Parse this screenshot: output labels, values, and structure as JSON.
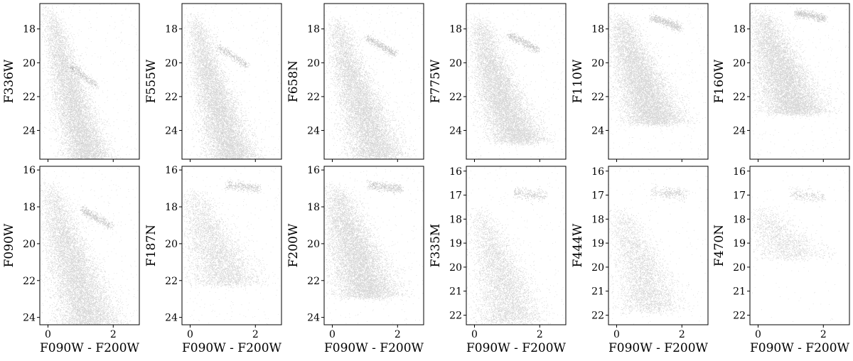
{
  "figure": {
    "shared_xlabel": "F090W - F200W",
    "background": "#ffffff",
    "point_color": "#000000"
  },
  "chart_data": [
    {
      "type": "scatter",
      "row": 0,
      "ylabel": "F336W",
      "xlabel": "",
      "xlim": [
        -0.25,
        2.8
      ],
      "ylim": [
        25.7,
        16.5
      ],
      "xticks": [
        0,
        2
      ],
      "xtick_labels": [
        "",
        ""
      ],
      "yticks": [
        18,
        20,
        22,
        24
      ],
      "ytick_labels": [
        "18",
        "20",
        "22",
        "24"
      ],
      "cloud": {
        "seq": [
          [
            0.0,
            16.6
          ],
          [
            0.35,
            19.0
          ],
          [
            0.7,
            22.0
          ],
          [
            1.0,
            24.0
          ],
          [
            1.25,
            25.7
          ]
        ],
        "width": 0.3,
        "n_main": 8000,
        "clump": {
          "x": 1.1,
          "y": 20.8,
          "slope": 1.5,
          "len": 0.8
        },
        "n_clump": 250,
        "n_field": 350
      }
    },
    {
      "type": "scatter",
      "row": 0,
      "ylabel": "F555W",
      "xlabel": "",
      "xlim": [
        -0.25,
        2.8
      ],
      "ylim": [
        25.7,
        16.5
      ],
      "xticks": [
        0,
        2
      ],
      "xtick_labels": [
        "",
        ""
      ],
      "yticks": [
        18,
        20,
        22,
        24
      ],
      "ytick_labels": [
        "18",
        "20",
        "22",
        "24"
      ],
      "cloud": {
        "seq": [
          [
            0.1,
            17.0
          ],
          [
            0.45,
            19.8
          ],
          [
            0.8,
            22.3
          ],
          [
            1.1,
            24.3
          ],
          [
            1.35,
            25.7
          ]
        ],
        "width": 0.32,
        "n_main": 8000,
        "clump": {
          "x": 1.3,
          "y": 19.6,
          "slope": 1.3,
          "len": 0.9
        },
        "n_clump": 300,
        "n_field": 350
      }
    },
    {
      "type": "scatter",
      "row": 0,
      "ylabel": "F658N",
      "xlabel": "",
      "xlim": [
        -0.25,
        2.8
      ],
      "ylim": [
        25.7,
        16.5
      ],
      "xticks": [
        0,
        2
      ],
      "xtick_labels": [
        "",
        ""
      ],
      "yticks": [
        18,
        20,
        22,
        24
      ],
      "ytick_labels": [
        "18",
        "20",
        "22",
        "24"
      ],
      "cloud": {
        "seq": [
          [
            0.1,
            17.2
          ],
          [
            0.5,
            20.2
          ],
          [
            0.9,
            22.6
          ],
          [
            1.15,
            24.0
          ],
          [
            1.4,
            25.6
          ]
        ],
        "width": 0.36,
        "n_main": 8000,
        "clump": {
          "x": 1.5,
          "y": 19.0,
          "slope": 1.1,
          "len": 0.9
        },
        "n_clump": 400,
        "n_field": 350
      }
    },
    {
      "type": "scatter",
      "row": 0,
      "ylabel": "F775W",
      "xlabel": "",
      "xlim": [
        -0.25,
        2.8
      ],
      "ylim": [
        25.7,
        16.5
      ],
      "xticks": [
        0,
        2
      ],
      "xtick_labels": [
        "",
        ""
      ],
      "yticks": [
        18,
        20,
        22,
        24
      ],
      "ytick_labels": [
        "18",
        "20",
        "22",
        "24"
      ],
      "cloud": {
        "seq": [
          [
            0.1,
            17.2
          ],
          [
            0.5,
            20.0
          ],
          [
            0.9,
            22.6
          ],
          [
            1.2,
            23.8
          ],
          [
            1.4,
            24.7
          ]
        ],
        "width": 0.36,
        "n_main": 8000,
        "clump": {
          "x": 1.5,
          "y": 18.8,
          "slope": 1.0,
          "len": 0.9
        },
        "n_clump": 400,
        "n_field": 350
      }
    },
    {
      "type": "scatter",
      "row": 0,
      "ylabel": "F110W",
      "xlabel": "",
      "xlim": [
        -0.25,
        2.8
      ],
      "ylim": [
        25.7,
        16.5
      ],
      "xticks": [
        0,
        2
      ],
      "xtick_labels": [
        "",
        ""
      ],
      "yticks": [
        18,
        20,
        22,
        24
      ],
      "ytick_labels": [
        "18",
        "20",
        "22",
        "24"
      ],
      "cloud": {
        "seq": [
          [
            0.05,
            17.0
          ],
          [
            0.45,
            19.4
          ],
          [
            0.8,
            21.4
          ],
          [
            1.05,
            22.6
          ],
          [
            1.25,
            23.6
          ]
        ],
        "width": 0.4,
        "n_main": 8000,
        "clump": {
          "x": 1.5,
          "y": 17.6,
          "slope": 0.7,
          "len": 0.9
        },
        "n_clump": 450,
        "n_field": 350
      }
    },
    {
      "type": "scatter",
      "row": 0,
      "ylabel": "F160W",
      "xlabel": "",
      "xlim": [
        -0.25,
        2.8
      ],
      "ylim": [
        25.7,
        16.5
      ],
      "xticks": [
        0,
        2
      ],
      "xtick_labels": [
        "",
        ""
      ],
      "yticks": [
        18,
        20,
        22,
        24
      ],
      "ytick_labels": [
        "18",
        "20",
        "22",
        "24"
      ],
      "cloud": {
        "seq": [
          [
            0.05,
            16.8
          ],
          [
            0.45,
            19.0
          ],
          [
            0.8,
            21.0
          ],
          [
            1.05,
            22.2
          ],
          [
            1.2,
            23.0
          ]
        ],
        "width": 0.42,
        "n_main": 8000,
        "clump": {
          "x": 1.6,
          "y": 17.2,
          "slope": 0.4,
          "len": 0.9
        },
        "n_clump": 450,
        "n_field": 350
      }
    },
    {
      "type": "scatter",
      "row": 1,
      "ylabel": "F090W",
      "xlabel": "F090W - F200W",
      "xlim": [
        -0.25,
        2.8
      ],
      "ylim": [
        24.4,
        15.8
      ],
      "xticks": [
        0,
        2
      ],
      "xtick_labels": [
        "0",
        "2"
      ],
      "yticks": [
        16,
        18,
        20,
        22,
        24
      ],
      "ytick_labels": [
        "16",
        "18",
        "20",
        "22",
        "24"
      ],
      "cloud": {
        "seq": [
          [
            0.0,
            16.6
          ],
          [
            0.4,
            19.0
          ],
          [
            0.8,
            21.5
          ],
          [
            1.1,
            23.0
          ],
          [
            1.3,
            24.4
          ]
        ],
        "width": 0.4,
        "n_main": 8000,
        "clump": {
          "x": 1.5,
          "y": 18.6,
          "slope": 1.0,
          "len": 0.9
        },
        "n_clump": 400,
        "n_field": 350
      }
    },
    {
      "type": "scatter",
      "row": 1,
      "ylabel": "F187N",
      "xlabel": "F090W - F200W",
      "xlim": [
        -0.25,
        2.8
      ],
      "ylim": [
        24.4,
        15.8
      ],
      "xticks": [
        0,
        2
      ],
      "xtick_labels": [
        "0",
        "2"
      ],
      "yticks": [
        16,
        18,
        20,
        22,
        24
      ],
      "ytick_labels": [
        "16",
        "18",
        "20",
        "22",
        "24"
      ],
      "cloud": {
        "seq": [
          [
            0.05,
            17.0
          ],
          [
            0.45,
            18.9
          ],
          [
            0.8,
            20.4
          ],
          [
            1.0,
            21.3
          ],
          [
            1.15,
            22.2
          ]
        ],
        "width": 0.45,
        "n_main": 4000,
        "clump": {
          "x": 1.6,
          "y": 16.9,
          "slope": 0.2,
          "len": 1.0
        },
        "n_clump": 300,
        "n_field": 250
      }
    },
    {
      "type": "scatter",
      "row": 1,
      "ylabel": "F200W",
      "xlabel": "F090W - F200W",
      "xlim": [
        -0.25,
        2.8
      ],
      "ylim": [
        24.4,
        15.8
      ],
      "xticks": [
        0,
        2
      ],
      "xtick_labels": [
        "0",
        "2"
      ],
      "yticks": [
        16,
        18,
        20,
        22,
        24
      ],
      "ytick_labels": [
        "16",
        "18",
        "20",
        "22",
        "24"
      ],
      "cloud": {
        "seq": [
          [
            0.05,
            16.7
          ],
          [
            0.45,
            19.0
          ],
          [
            0.8,
            21.0
          ],
          [
            1.05,
            22.3
          ],
          [
            1.15,
            22.9
          ]
        ],
        "width": 0.42,
        "n_main": 8000,
        "clump": {
          "x": 1.6,
          "y": 16.9,
          "slope": 0.2,
          "len": 1.0
        },
        "n_clump": 400,
        "n_field": 350
      }
    },
    {
      "type": "scatter",
      "row": 1,
      "ylabel": "F335M",
      "xlabel": "F090W - F200W",
      "xlim": [
        -0.25,
        2.8
      ],
      "ylim": [
        22.4,
        15.8
      ],
      "xticks": [
        0,
        2
      ],
      "xtick_labels": [
        "0",
        "2"
      ],
      "yticks": [
        16,
        17,
        18,
        19,
        20,
        21,
        22
      ],
      "ytick_labels": [
        "16",
        "17",
        "18",
        "19",
        "20",
        "21",
        "22"
      ],
      "cloud": {
        "seq": [
          [
            0.05,
            17.5
          ],
          [
            0.45,
            18.8
          ],
          [
            0.8,
            20.2
          ],
          [
            1.0,
            21.2
          ],
          [
            1.1,
            22.3
          ]
        ],
        "width": 0.42,
        "n_main": 4500,
        "clump": {
          "x": 1.7,
          "y": 16.95,
          "slope": 0.1,
          "len": 1.0
        },
        "n_clump": 250,
        "n_field": 300
      }
    },
    {
      "type": "scatter",
      "row": 1,
      "ylabel": "F444W",
      "xlabel": "F090W - F200W",
      "xlim": [
        -0.25,
        2.8
      ],
      "ylim": [
        22.4,
        15.8
      ],
      "xticks": [
        0,
        2
      ],
      "xtick_labels": [
        "0",
        "2"
      ],
      "yticks": [
        16,
        17,
        18,
        19,
        20,
        21,
        22
      ],
      "ytick_labels": [
        "16",
        "17",
        "18",
        "19",
        "20",
        "21",
        "22"
      ],
      "cloud": {
        "seq": [
          [
            0.05,
            17.5
          ],
          [
            0.45,
            18.8
          ],
          [
            0.8,
            20.2
          ],
          [
            0.95,
            21.0
          ],
          [
            1.05,
            21.8
          ]
        ],
        "width": 0.42,
        "n_main": 3500,
        "clump": {
          "x": 1.6,
          "y": 16.9,
          "slope": 0.1,
          "len": 1.0
        },
        "n_clump": 250,
        "n_field": 250
      }
    },
    {
      "type": "scatter",
      "row": 1,
      "ylabel": "F470N",
      "xlabel": "F090W - F200W",
      "xlim": [
        -0.25,
        2.8
      ],
      "ylim": [
        22.4,
        15.8
      ],
      "xticks": [
        0,
        2
      ],
      "xtick_labels": [
        "0",
        "2"
      ],
      "yticks": [
        16,
        17,
        18,
        19,
        20,
        21,
        22
      ],
      "ytick_labels": [
        "16",
        "17",
        "18",
        "19",
        "20",
        "21",
        "22"
      ],
      "cloud": {
        "seq": [
          [
            0.05,
            17.5
          ],
          [
            0.4,
            18.2
          ],
          [
            0.8,
            18.9
          ],
          [
            1.0,
            19.3
          ],
          [
            1.1,
            19.6
          ]
        ],
        "width": 0.45,
        "n_main": 1500,
        "clump": {
          "x": 1.5,
          "y": 17.0,
          "slope": 0.1,
          "len": 1.0
        },
        "n_clump": 200,
        "n_field": 120
      }
    }
  ]
}
